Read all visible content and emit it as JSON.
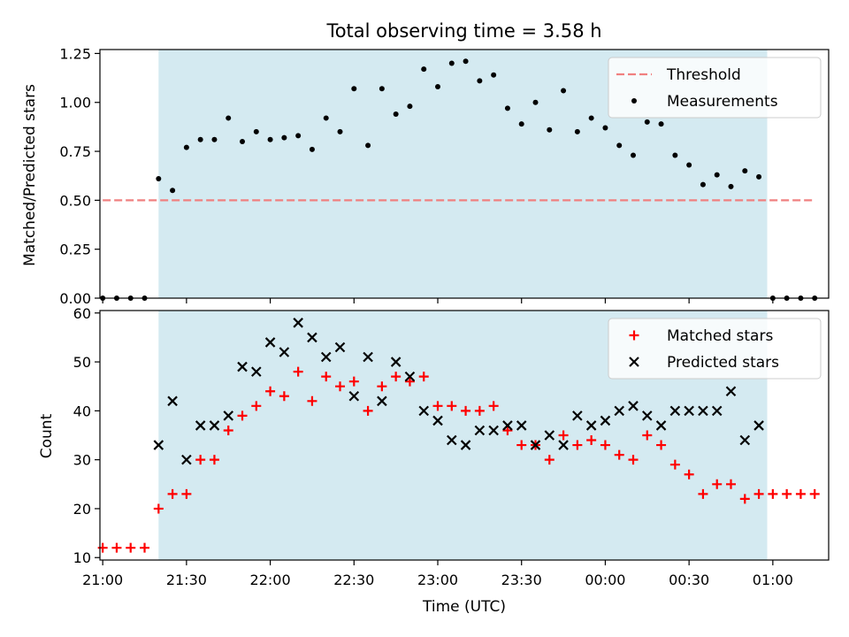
{
  "chart_data": [
    {
      "type": "scatter",
      "title": "Total observing time = 3.58 h",
      "xlabel": "",
      "ylabel": "Matched/Predicted stars",
      "ylim": [
        0.0,
        1.27
      ],
      "xlim": [
        "20:59",
        "01:20"
      ],
      "yticks": [
        "0.00",
        "0.25",
        "0.50",
        "0.75",
        "1.00",
        "1.25"
      ],
      "grid": false,
      "legend": "top-right",
      "shaded_interval": {
        "start": "21:20",
        "end": "00:58",
        "color": "#d4eaf1"
      },
      "series": [
        {
          "name": "Threshold",
          "style": "dashed-line",
          "color": "#f08080",
          "points": [
            [
              "21:00",
              0.5
            ],
            [
              "01:15",
              0.5
            ]
          ]
        },
        {
          "name": "Measurements",
          "style": "dot",
          "color": "#000000",
          "points": [
            [
              "21:00",
              0.0
            ],
            [
              "21:05",
              0.0
            ],
            [
              "21:10",
              0.0
            ],
            [
              "21:15",
              0.0
            ],
            [
              "21:20",
              0.61
            ],
            [
              "21:25",
              0.55
            ],
            [
              "21:30",
              0.77
            ],
            [
              "21:35",
              0.81
            ],
            [
              "21:40",
              0.81
            ],
            [
              "21:45",
              0.92
            ],
            [
              "21:50",
              0.8
            ],
            [
              "21:55",
              0.85
            ],
            [
              "22:00",
              0.81
            ],
            [
              "22:05",
              0.82
            ],
            [
              "22:10",
              0.83
            ],
            [
              "22:15",
              0.76
            ],
            [
              "22:20",
              0.92
            ],
            [
              "22:25",
              0.85
            ],
            [
              "22:30",
              1.07
            ],
            [
              "22:35",
              0.78
            ],
            [
              "22:40",
              1.07
            ],
            [
              "22:45",
              0.94
            ],
            [
              "22:50",
              0.98
            ],
            [
              "22:55",
              1.17
            ],
            [
              "23:00",
              1.08
            ],
            [
              "23:05",
              1.2
            ],
            [
              "23:10",
              1.21
            ],
            [
              "23:15",
              1.11
            ],
            [
              "23:20",
              1.14
            ],
            [
              "23:25",
              0.97
            ],
            [
              "23:30",
              0.89
            ],
            [
              "23:35",
              1.0
            ],
            [
              "23:40",
              0.86
            ],
            [
              "23:45",
              1.06
            ],
            [
              "23:50",
              0.85
            ],
            [
              "23:55",
              0.92
            ],
            [
              "00:00",
              0.87
            ],
            [
              "00:05",
              0.78
            ],
            [
              "00:10",
              0.73
            ],
            [
              "00:15",
              0.9
            ],
            [
              "00:20",
              0.89
            ],
            [
              "00:25",
              0.73
            ],
            [
              "00:30",
              0.68
            ],
            [
              "00:35",
              0.58
            ],
            [
              "00:40",
              0.63
            ],
            [
              "00:45",
              0.57
            ],
            [
              "00:50",
              0.65
            ],
            [
              "00:55",
              0.62
            ],
            [
              "01:00",
              0.0
            ],
            [
              "01:05",
              0.0
            ],
            [
              "01:10",
              0.0
            ],
            [
              "01:15",
              0.0
            ]
          ]
        }
      ]
    },
    {
      "type": "scatter",
      "title": "",
      "xlabel": "Time (UTC)",
      "ylabel": "Count",
      "ylim": [
        9.5,
        60.5
      ],
      "xlim": [
        "20:59",
        "01:20"
      ],
      "yticks": [
        "10",
        "20",
        "30",
        "40",
        "50",
        "60"
      ],
      "xticks": [
        "21:00",
        "21:30",
        "22:00",
        "22:30",
        "23:00",
        "23:30",
        "00:00",
        "00:30",
        "01:00"
      ],
      "grid": false,
      "legend": "top-right",
      "shaded_interval": {
        "start": "21:20",
        "end": "00:58",
        "color": "#d4eaf1"
      },
      "series": [
        {
          "name": "Matched stars",
          "style": "plus",
          "color": "#ff0000",
          "points": [
            [
              "21:00",
              12
            ],
            [
              "21:05",
              12
            ],
            [
              "21:10",
              12
            ],
            [
              "21:15",
              12
            ],
            [
              "21:20",
              20
            ],
            [
              "21:25",
              23
            ],
            [
              "21:30",
              23
            ],
            [
              "21:35",
              30
            ],
            [
              "21:40",
              30
            ],
            [
              "21:45",
              36
            ],
            [
              "21:50",
              39
            ],
            [
              "21:55",
              41
            ],
            [
              "22:00",
              44
            ],
            [
              "22:05",
              43
            ],
            [
              "22:10",
              48
            ],
            [
              "22:15",
              42
            ],
            [
              "22:20",
              47
            ],
            [
              "22:25",
              45
            ],
            [
              "22:30",
              46
            ],
            [
              "22:35",
              40
            ],
            [
              "22:40",
              45
            ],
            [
              "22:45",
              47
            ],
            [
              "22:50",
              46
            ],
            [
              "22:55",
              47
            ],
            [
              "23:00",
              41
            ],
            [
              "23:05",
              41
            ],
            [
              "23:10",
              40
            ],
            [
              "23:15",
              40
            ],
            [
              "23:20",
              41
            ],
            [
              "23:25",
              36
            ],
            [
              "23:30",
              33
            ],
            [
              "23:35",
              33
            ],
            [
              "23:40",
              30
            ],
            [
              "23:45",
              35
            ],
            [
              "23:50",
              33
            ],
            [
              "23:55",
              34
            ],
            [
              "00:00",
              33
            ],
            [
              "00:05",
              31
            ],
            [
              "00:10",
              30
            ],
            [
              "00:15",
              35
            ],
            [
              "00:20",
              33
            ],
            [
              "00:25",
              29
            ],
            [
              "00:30",
              27
            ],
            [
              "00:35",
              23
            ],
            [
              "00:40",
              25
            ],
            [
              "00:45",
              25
            ],
            [
              "00:50",
              22
            ],
            [
              "00:55",
              23
            ],
            [
              "01:00",
              23
            ],
            [
              "01:05",
              23
            ],
            [
              "01:10",
              23
            ],
            [
              "01:15",
              23
            ]
          ]
        },
        {
          "name": "Predicted stars",
          "style": "x",
          "color": "#000000",
          "points": [
            [
              "21:20",
              33
            ],
            [
              "21:25",
              42
            ],
            [
              "21:30",
              30
            ],
            [
              "21:35",
              37
            ],
            [
              "21:40",
              37
            ],
            [
              "21:45",
              39
            ],
            [
              "21:50",
              49
            ],
            [
              "21:55",
              48
            ],
            [
              "22:00",
              54
            ],
            [
              "22:05",
              52
            ],
            [
              "22:10",
              58
            ],
            [
              "22:15",
              55
            ],
            [
              "22:20",
              51
            ],
            [
              "22:25",
              53
            ],
            [
              "22:30",
              43
            ],
            [
              "22:35",
              51
            ],
            [
              "22:40",
              42
            ],
            [
              "22:45",
              50
            ],
            [
              "22:50",
              47
            ],
            [
              "22:55",
              40
            ],
            [
              "23:00",
              38
            ],
            [
              "23:05",
              34
            ],
            [
              "23:10",
              33
            ],
            [
              "23:15",
              36
            ],
            [
              "23:20",
              36
            ],
            [
              "23:25",
              37
            ],
            [
              "23:30",
              37
            ],
            [
              "23:35",
              33
            ],
            [
              "23:40",
              35
            ],
            [
              "23:45",
              33
            ],
            [
              "23:50",
              39
            ],
            [
              "23:55",
              37
            ],
            [
              "00:00",
              38
            ],
            [
              "00:05",
              40
            ],
            [
              "00:10",
              41
            ],
            [
              "00:15",
              39
            ],
            [
              "00:20",
              37
            ],
            [
              "00:25",
              40
            ],
            [
              "00:30",
              40
            ],
            [
              "00:35",
              40
            ],
            [
              "00:40",
              40
            ],
            [
              "00:45",
              44
            ],
            [
              "00:50",
              34
            ],
            [
              "00:55",
              37
            ]
          ]
        }
      ]
    }
  ]
}
